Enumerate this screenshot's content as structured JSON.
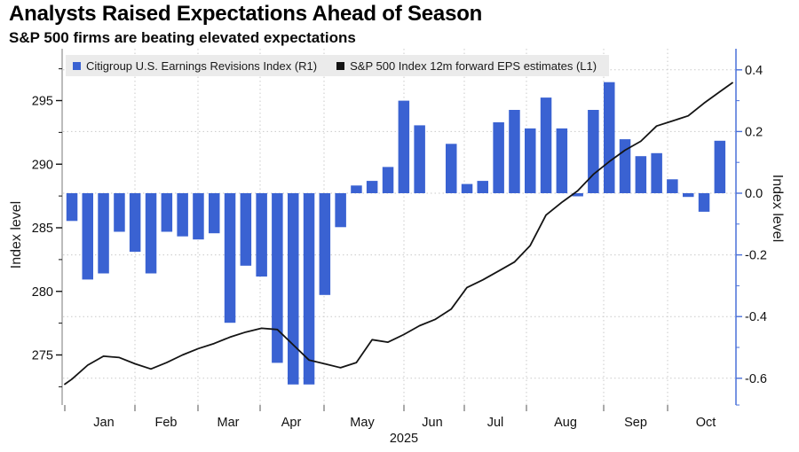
{
  "header": {
    "title": "Analysts Raised Expectations Ahead of Season",
    "subtitle": "S&P 500 firms are beating elevated expectations"
  },
  "legend": {
    "items": [
      {
        "label": "Citigroup U.S. Earnings Revisions Index (R1)",
        "color": "#3a62d2",
        "marker": "square"
      },
      {
        "label": "S&P 500 Index 12m forward EPS estimates (L1)",
        "color": "#141414",
        "marker": "square"
      }
    ]
  },
  "left_axis": {
    "label": "Index level",
    "ticks": [
      "295",
      "290",
      "285",
      "280",
      "275"
    ],
    "tick_values": [
      295,
      290,
      285,
      280,
      275
    ],
    "minor_tick_values": [
      297.5,
      292.5,
      287.5,
      282.5,
      277.5,
      272.5
    ]
  },
  "right_axis": {
    "label": "Index level",
    "ticks": [
      "0.4",
      "0.2",
      "0.0",
      "-0.2",
      "-0.4",
      "-0.6"
    ],
    "tick_values": [
      0.4,
      0.2,
      0.0,
      -0.2,
      -0.4,
      -0.6
    ],
    "minor_tick_values": [
      0.3,
      0.1,
      -0.1,
      -0.3,
      -0.5
    ]
  },
  "x_axis": {
    "months": [
      "Jan",
      "Feb",
      "Mar",
      "Apr",
      "May",
      "Jun",
      "Jul",
      "Aug",
      "Sep",
      "Oct"
    ],
    "year": "2025"
  },
  "colors": {
    "bar_blue": "#3a62d2",
    "line_black": "#141414",
    "right_axis_blue": "#4a70d8",
    "left_axis_gray": "#7a7a7a",
    "grid_gray": "#c9c9c9",
    "tick_text": "#111111",
    "legend_bg": "#ebebeb"
  },
  "chart_data": {
    "type": "combo",
    "title": "Analysts Raised Expectations Ahead of Season",
    "subtitle": "S&P 500 firms are beating elevated expectations",
    "x_unit": "week",
    "x_months": [
      "Jan",
      "Feb",
      "Mar",
      "Apr",
      "May",
      "Jun",
      "Jul",
      "Aug",
      "Sep",
      "Oct"
    ],
    "year": "2025",
    "grid": {
      "horizontal": "dotted at right-axis ticks",
      "vertical": "dotted at month boundaries"
    },
    "legend_position": "top",
    "left_axis_range": [
      271,
      297.5
    ],
    "right_axis_range": [
      -0.66,
      0.45
    ],
    "series": [
      {
        "name": "Citigroup U.S. Earnings Revisions Index (R1)",
        "type": "bar",
        "axis": "right",
        "color": "#3a62d2",
        "values": [
          -0.09,
          -0.28,
          -0.26,
          -0.125,
          -0.19,
          -0.26,
          -0.125,
          -0.14,
          -0.15,
          -0.13,
          -0.42,
          -0.235,
          -0.27,
          -0.55,
          -0.62,
          -0.62,
          -0.33,
          -0.11,
          0.025,
          0.04,
          0.085,
          0.3,
          0.22,
          null,
          0.16,
          0.03,
          0.04,
          0.23,
          0.27,
          0.21,
          0.31,
          0.21,
          -0.01,
          0.27,
          0.36,
          0.175,
          0.12,
          0.13,
          0.045,
          -0.012,
          -0.06,
          0.17
        ]
      },
      {
        "name": "S&P 500 Index 12m forward EPS estimates (L1)",
        "type": "line",
        "axis": "left",
        "color": "#141414",
        "points": [
          [
            -0.45,
            272.7
          ],
          [
            0,
            273.1
          ],
          [
            1,
            274.2
          ],
          [
            2,
            274.9
          ],
          [
            3,
            274.8
          ],
          [
            4,
            274.3
          ],
          [
            5,
            273.9
          ],
          [
            6,
            274.4
          ],
          [
            7,
            275.0
          ],
          [
            8,
            275.5
          ],
          [
            9,
            275.9
          ],
          [
            10,
            276.4
          ],
          [
            11,
            276.8
          ],
          [
            12,
            277.1
          ],
          [
            13,
            277.0
          ],
          [
            14,
            275.8
          ],
          [
            15,
            274.6
          ],
          [
            16,
            274.3
          ],
          [
            17,
            274.0
          ],
          [
            18,
            274.4
          ],
          [
            19,
            276.2
          ],
          [
            20,
            276.0
          ],
          [
            21,
            276.6
          ],
          [
            22,
            277.3
          ],
          [
            23,
            277.8
          ],
          [
            24,
            278.6
          ],
          [
            25,
            280.3
          ],
          [
            26,
            280.9
          ],
          [
            27,
            281.6
          ],
          [
            28,
            282.3
          ],
          [
            29,
            283.6
          ],
          [
            30,
            286.0
          ],
          [
            31,
            287.0
          ],
          [
            32,
            287.9
          ],
          [
            33,
            289.2
          ],
          [
            34,
            290.2
          ],
          [
            35,
            291.1
          ],
          [
            36,
            291.8
          ],
          [
            37,
            293.0
          ],
          [
            38,
            293.4
          ],
          [
            39,
            293.8
          ],
          [
            40,
            294.8
          ],
          [
            41,
            295.7
          ],
          [
            41.8,
            296.4
          ]
        ]
      }
    ]
  }
}
